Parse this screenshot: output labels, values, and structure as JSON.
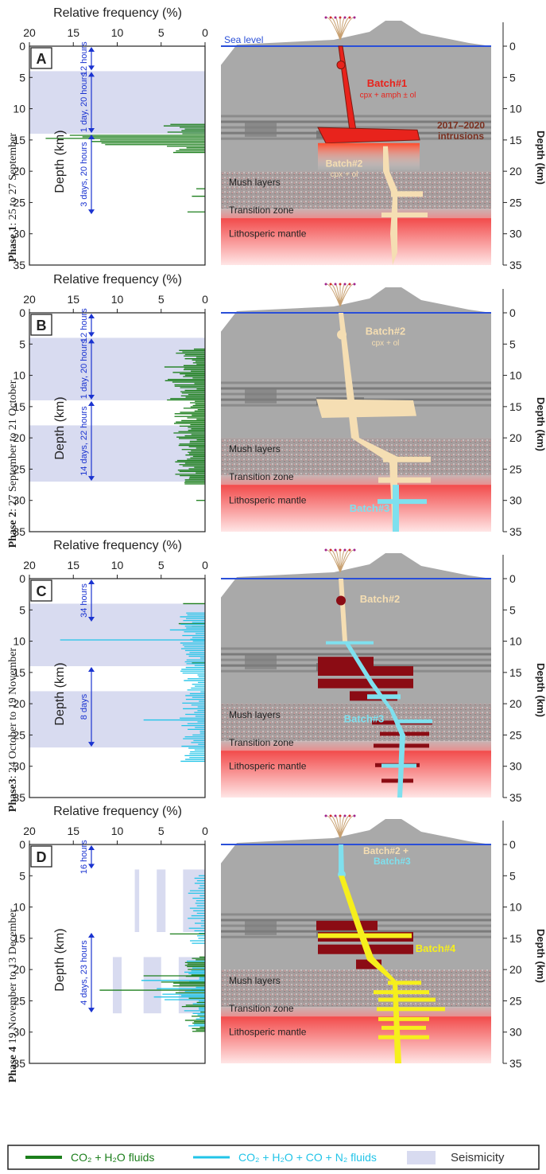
{
  "panels": [
    {
      "letter": "A",
      "phase": "Phase 1",
      "phase_dates": ": 25 to 27 September",
      "intervals": [
        {
          "label": "12 hours",
          "from_km": 0,
          "to_km": 4
        },
        {
          "label": "1 day, 20 hours",
          "from_km": 4,
          "to_km": 14
        },
        {
          "label": "3 days, 20 hours",
          "from_km": 14,
          "to_km": 27
        }
      ],
      "seismicity_bands_km": [
        [
          4,
          14
        ]
      ],
      "seismicity_partial": [],
      "fluid_type": "CO2+H2O",
      "batches": [
        {
          "text": "Batch#1",
          "sub": "cpx + amph ± ol",
          "color": "#e8231c"
        },
        {
          "text": "Batch#2",
          "sub": "cpx + ol",
          "color": "#f5deb3"
        }
      ],
      "intrusion_label": [
        "2017–2020",
        "intrusions"
      ],
      "show_sea_level": true
    },
    {
      "letter": "B",
      "phase": "Phase 2",
      "phase_dates": ": 27 September to 21 October",
      "intervals": [
        {
          "label": "12 hours",
          "from_km": 0,
          "to_km": 4
        },
        {
          "label": "1 day, 20 hours",
          "from_km": 4,
          "to_km": 14
        },
        {
          "label": "14 days, 22 hours",
          "from_km": 14,
          "to_km": 27
        }
      ],
      "seismicity_bands_km": [
        [
          4,
          14
        ],
        [
          18,
          27
        ]
      ],
      "seismicity_partial": [],
      "fluid_type": "CO2+H2O",
      "batches": [
        {
          "text": "Batch#2",
          "sub": "cpx + ol",
          "color": "#f5deb3"
        },
        {
          "text": "Batch#3",
          "sub": "",
          "color": "#7fe0ee"
        }
      ],
      "intrusion_label": [],
      "show_sea_level": false
    },
    {
      "letter": "C",
      "phase": "Phase3",
      "phase_dates": ": 24 October to 19 November",
      "intervals": [
        {
          "label": "34 hours",
          "from_km": 0,
          "to_km": 7
        },
        {
          "label": "8 days",
          "from_km": 14,
          "to_km": 27
        }
      ],
      "seismicity_bands_km": [
        [
          4,
          14
        ],
        [
          18,
          27
        ]
      ],
      "seismicity_partial": [],
      "fluid_type": "mixed",
      "batches": [
        {
          "text": "Batch#2",
          "sub": "",
          "color": "#f5deb3"
        },
        {
          "text": "Batch#3",
          "sub": "",
          "color": "#7fe0ee"
        }
      ],
      "intrusion_label": [],
      "show_sea_level": false
    },
    {
      "letter": "D",
      "phase": "Phase 4",
      "phase_dates": " 19 November to 13 December",
      "intervals": [
        {
          "label": "16 hours",
          "from_km": 0,
          "to_km": 4
        },
        {
          "label": "4 days, 23 hours",
          "from_km": 14,
          "to_km": 27
        }
      ],
      "seismicity_bands_km": [],
      "seismicity_partial": [
        [
          2.5,
          0,
          4,
          14
        ],
        [
          5.5,
          4.5,
          4,
          14
        ],
        [
          8,
          7.5,
          4,
          14
        ],
        [
          3,
          0,
          18,
          27
        ],
        [
          7,
          5,
          18,
          27
        ],
        [
          10.5,
          9.5,
          18,
          27
        ]
      ],
      "fluid_type": "mixed",
      "batches": [
        {
          "text": "Batch#2 +",
          "sub": "",
          "color": "#f5deb3"
        },
        {
          "text": "Batch#3",
          "sub": "",
          "color": "#7fe0ee"
        },
        {
          "text": "Batch#4",
          "sub": "",
          "color": "#f6ef1c"
        }
      ],
      "intrusion_label": [],
      "show_sea_level": false
    }
  ],
  "freq_axis": {
    "label": "Relative frequency (%)",
    "ticks": [
      20,
      15,
      10,
      5,
      0
    ],
    "range": [
      20,
      0
    ]
  },
  "depth_axis": {
    "label": "Depth (km)",
    "ticks": [
      0,
      5,
      10,
      15,
      20,
      25,
      30,
      35
    ],
    "range": [
      0,
      35
    ]
  },
  "layer_labels": {
    "sea_level": "Sea level",
    "mush": "Mush layers",
    "transition": "Transition zone",
    "mantle": "Lithosperic mantle"
  },
  "legend": {
    "items": [
      {
        "label": "CO₂ + H₂O fluids",
        "color": "#1c7f1c"
      },
      {
        "label": "CO₂ + H₂O + CO + N₂ fluids",
        "color": "#22c4e8"
      },
      {
        "label": "Seismicity",
        "color": "#d8dbf0"
      }
    ]
  },
  "colors": {
    "co2_h2o": "#1c7f1c",
    "mixed": "#22c4e8",
    "seismicity": "#d8dbf0",
    "interval_arrow": "#1a33d0",
    "sea_level": "#2a4fd8"
  }
}
